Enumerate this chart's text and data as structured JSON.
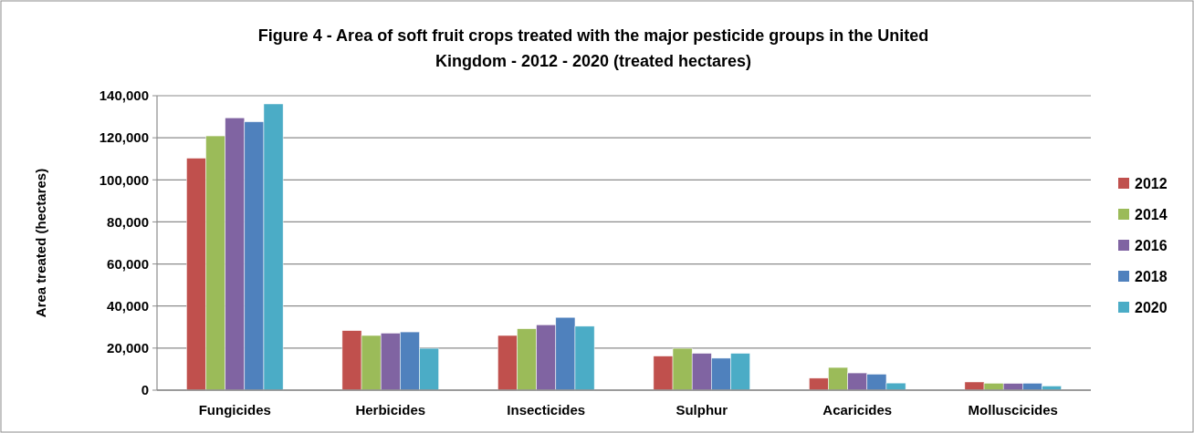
{
  "chart_data": {
    "type": "bar",
    "title": "Figure 4 - Area of soft fruit crops treated with the major pesticide groups in the United Kingdom - 2012 - 2020 (treated hectares)",
    "ylabel": "Area treated (hectares)",
    "categories": [
      "Fungicides",
      "Herbicides",
      "Insecticides",
      "Sulphur",
      "Acaricides",
      "Molluscicides"
    ],
    "series": [
      {
        "name": "2012",
        "color": "#c0504d",
        "values": [
          110300,
          28300,
          26000,
          16200,
          5700,
          3900
        ]
      },
      {
        "name": "2014",
        "color": "#9bbb59",
        "values": [
          120900,
          26000,
          29200,
          19900,
          10800,
          3300
        ]
      },
      {
        "name": "2016",
        "color": "#8064a2",
        "values": [
          129500,
          27100,
          31100,
          17500,
          8200,
          3200
        ]
      },
      {
        "name": "2018",
        "color": "#4f81bd",
        "values": [
          127600,
          27700,
          34600,
          15200,
          7600,
          3300
        ]
      },
      {
        "name": "2020",
        "color": "#4bacc6",
        "values": [
          136100,
          19900,
          30400,
          17500,
          3400,
          2000
        ]
      }
    ],
    "ylim": [
      0,
      140000
    ],
    "yticks": [
      {
        "value": 0,
        "label": "0"
      },
      {
        "value": 20000,
        "label": "20,000"
      },
      {
        "value": 40000,
        "label": "40,000"
      },
      {
        "value": 60000,
        "label": "60,000"
      },
      {
        "value": 80000,
        "label": "80,000"
      },
      {
        "value": 100000,
        "label": "100,000"
      },
      {
        "value": 120000,
        "label": "120,000"
      },
      {
        "value": 140000,
        "label": "140,000"
      }
    ],
    "grid": "y",
    "legend": "right"
  }
}
